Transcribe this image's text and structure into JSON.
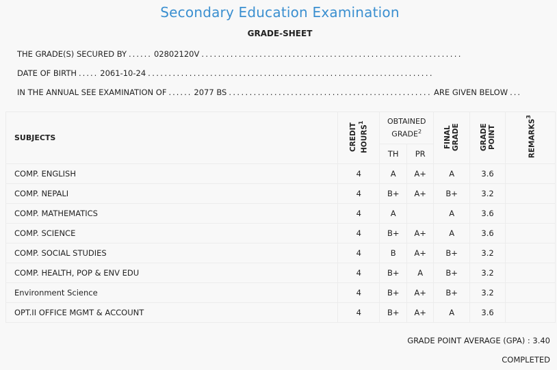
{
  "header": {
    "title": "Secondary Education Examination",
    "subtitle": "GRADE-SHEET"
  },
  "info": {
    "secured_label": "THE GRADE(S) SECURED BY",
    "secured_value": "02802120V",
    "dob_label": "DATE OF BIRTH",
    "dob_value": "2061-10-24",
    "exam_label": "IN THE ANNUAL SEE EXAMINATION OF",
    "exam_value": "2077 BS",
    "exam_suffix": "ARE GIVEN BELOW"
  },
  "table": {
    "headers": {
      "subjects": "SUBJECTS",
      "credit_hours": "CREDIT HOURS",
      "credit_hours_sup": "1",
      "obtained_grade": "OBTAINED GRADE",
      "obtained_grade_sup": "2",
      "th": "TH",
      "pr": "PR",
      "final_grade": "FINAL GRADE",
      "grade_point": "GRADE POINT",
      "remarks": "REMARKS",
      "remarks_sup": "3"
    },
    "rows": [
      {
        "subject": "COMP. ENGLISH",
        "credit": "4",
        "th": "A",
        "pr": "A+",
        "final": "A",
        "gp": "3.6",
        "remarks": ""
      },
      {
        "subject": "COMP. NEPALI",
        "credit": "4",
        "th": "B+",
        "pr": "A+",
        "final": "B+",
        "gp": "3.2",
        "remarks": ""
      },
      {
        "subject": "COMP. MATHEMATICS",
        "credit": "4",
        "th": "A",
        "pr": "",
        "final": "A",
        "gp": "3.6",
        "remarks": ""
      },
      {
        "subject": "COMP. SCIENCE",
        "credit": "4",
        "th": "B+",
        "pr": "A+",
        "final": "A",
        "gp": "3.6",
        "remarks": ""
      },
      {
        "subject": "COMP. SOCIAL STUDIES",
        "credit": "4",
        "th": "B",
        "pr": "A+",
        "final": "B+",
        "gp": "3.2",
        "remarks": ""
      },
      {
        "subject": "COMP. HEALTH, POP & ENV EDU",
        "credit": "4",
        "th": "B+",
        "pr": "A",
        "final": "B+",
        "gp": "3.2",
        "remarks": ""
      },
      {
        "subject": "Environment Science",
        "credit": "4",
        "th": "B+",
        "pr": "A+",
        "final": "B+",
        "gp": "3.2",
        "remarks": ""
      },
      {
        "subject": "OPT.II OFFICE MGMT & ACCOUNT",
        "credit": "4",
        "th": "B+",
        "pr": "A+",
        "final": "A",
        "gp": "3.6",
        "remarks": ""
      }
    ]
  },
  "footer": {
    "gpa_label": "GRADE POINT AVERAGE (GPA) :",
    "gpa_value": "3.40",
    "status": "COMPLETED"
  },
  "colors": {
    "title": "#3a8fd0",
    "background": "#f8f8f8",
    "border": "#ececec"
  }
}
